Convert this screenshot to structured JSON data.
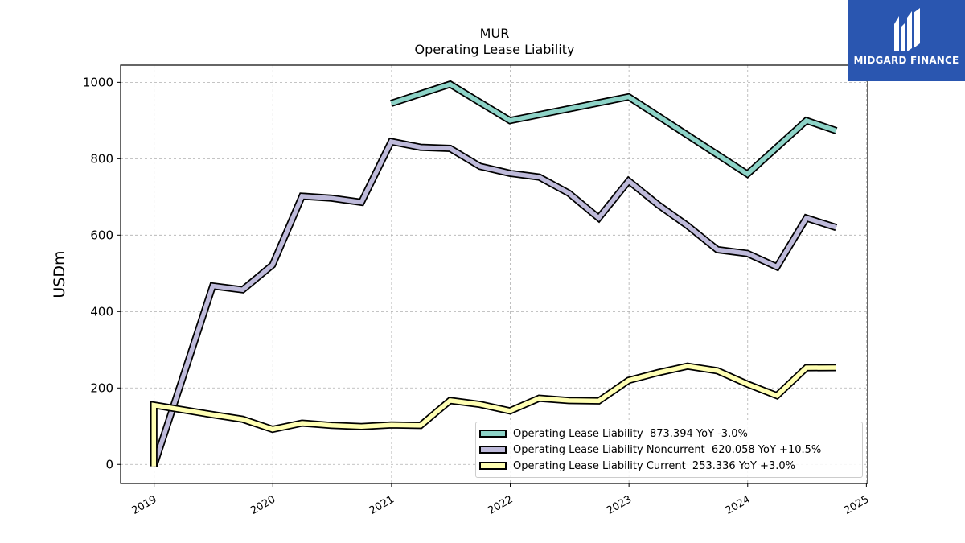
{
  "chart_data": {
    "type": "line",
    "title": "MUR",
    "subtitle": "Operating Lease Liability",
    "xlabel": "",
    "ylabel": "USDm",
    "x_ticks": [
      "2019",
      "2020",
      "2021",
      "2022",
      "2023",
      "2024",
      "2025"
    ],
    "y_ticks": [
      "0",
      "200",
      "400",
      "600",
      "800",
      "1000"
    ],
    "xlim": [
      "2018-09-20",
      "2025-01-05"
    ],
    "ylim": [
      -50,
      1045
    ],
    "grid": true,
    "legend_position": "lower-right",
    "series": [
      {
        "name": "Operating Lease Liability",
        "legend_label": "Operating Lease Liability  873.394 YoY -3.0%",
        "color": "#8dd3c7",
        "x": [
          "2020-12-31",
          "2021-06-30",
          "2021-12-31",
          "2022-12-31",
          "2023-12-31",
          "2024-06-30",
          "2024-09-30"
        ],
        "y": [
          945,
          995,
          900,
          962,
          760,
          900,
          873.394
        ]
      },
      {
        "name": "Operating Lease Liability Noncurrent",
        "legend_label": "Operating Lease Liability Noncurrent  620.058 YoY +10.5%",
        "color": "#bebada",
        "x": [
          "2018-12-31",
          "2019-06-30",
          "2019-09-30",
          "2019-12-31",
          "2020-03-31",
          "2020-06-30",
          "2020-09-30",
          "2020-12-31",
          "2021-03-31",
          "2021-06-30",
          "2021-09-30",
          "2021-12-31",
          "2022-03-31",
          "2022-06-30",
          "2022-09-30",
          "2022-12-31",
          "2023-03-31",
          "2023-06-30",
          "2023-09-30",
          "2023-12-31",
          "2024-03-31",
          "2024-06-30",
          "2024-09-30"
        ],
        "y": [
          -5,
          467,
          457,
          522,
          702,
          697,
          686,
          845,
          830,
          827,
          780,
          762,
          752,
          710,
          645,
          742,
          680,
          625,
          562,
          552,
          517,
          645,
          620.058
        ]
      },
      {
        "name": "Operating Lease Liability Current",
        "legend_label": "Operating Lease Liability Current  253.336 YoY +3.0%",
        "color": "#ffffb3",
        "x": [
          "2018-12-31",
          "2018-12-31",
          "2019-06-30",
          "2019-09-30",
          "2019-12-31",
          "2020-03-31",
          "2020-06-30",
          "2020-09-30",
          "2020-12-31",
          "2021-03-31",
          "2021-06-30",
          "2021-09-30",
          "2021-12-31",
          "2022-03-31",
          "2022-06-30",
          "2022-09-30",
          "2022-12-31",
          "2023-03-31",
          "2023-06-30",
          "2023-09-30",
          "2023-12-31",
          "2024-03-31",
          "2024-06-30",
          "2024-09-30"
        ],
        "y": [
          -5,
          155,
          130,
          118,
          92,
          108,
          102,
          99,
          103,
          102,
          167,
          157,
          140,
          173,
          167,
          166,
          220,
          240,
          257,
          245,
          210,
          180,
          253,
          253.336
        ]
      }
    ]
  },
  "logo": {
    "text": "MIDGARD FINANCE"
  }
}
